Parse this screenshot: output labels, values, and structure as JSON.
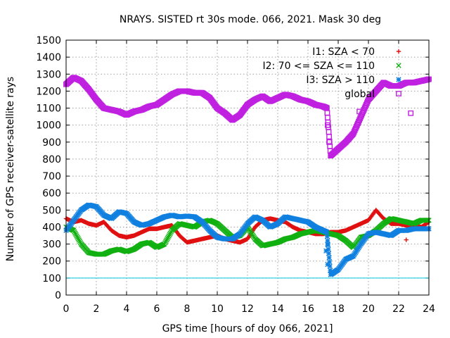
{
  "chart_data": {
    "type": "scatter",
    "title": "NRAYS. SISTED rt 30s mode. 066, 2021. Mask 30 deg",
    "xlabel": "GPS time [hours of doy 066, 2021]",
    "ylabel": "Number of GPS receiver-satellite rays",
    "xlim": [
      0,
      24
    ],
    "ylim": [
      0,
      1500
    ],
    "xticks": [
      "0",
      "2",
      "4",
      "6",
      "8",
      "10",
      "12",
      "14",
      "16",
      "18",
      "20",
      "22",
      "24"
    ],
    "yticks": [
      "0",
      "100",
      "200",
      "300",
      "400",
      "500",
      "600",
      "700",
      "800",
      "900",
      "1000",
      "1100",
      "1200",
      "1300",
      "1400",
      "1500"
    ],
    "grid": true,
    "legend_position": "top-right",
    "reference_line": {
      "y": 100,
      "color": "#00c8e0"
    },
    "series": [
      {
        "name": "I1: SZA < 70",
        "marker": "plus",
        "color": "#e01010",
        "x": [
          0,
          0.5,
          1,
          1.5,
          2,
          2.5,
          3,
          3.5,
          4,
          4.5,
          5,
          5.5,
          6,
          6.5,
          7,
          7.5,
          8,
          8.5,
          9,
          9.5,
          10,
          10.5,
          11,
          11.5,
          12,
          12.5,
          13,
          13.5,
          14,
          14.5,
          15,
          15.5,
          16,
          16.5,
          17,
          17.5,
          18,
          18.5,
          19,
          19.5,
          20,
          20.5,
          21,
          21.5,
          22,
          22.5,
          23,
          23.5,
          24
        ],
        "y": [
          450,
          430,
          440,
          420,
          410,
          430,
          380,
          350,
          340,
          350,
          370,
          390,
          390,
          400,
          410,
          350,
          310,
          320,
          330,
          340,
          350,
          330,
          320,
          310,
          330,
          400,
          440,
          450,
          440,
          430,
          400,
          380,
          370,
          360,
          360,
          370,
          370,
          380,
          400,
          420,
          440,
          500,
          450,
          420,
          420,
          410,
          410,
          400,
          430
        ],
        "outliers": [
          {
            "x": 22.5,
            "y": 325
          }
        ]
      },
      {
        "name": "I2: 70 <= SZA <= 110",
        "marker": "cross",
        "color": "#10b010",
        "x": [
          0,
          0.5,
          1,
          1.5,
          2,
          2.5,
          3,
          3.5,
          4,
          4.5,
          5,
          5.5,
          6,
          6.5,
          7,
          7.5,
          8,
          8.5,
          9,
          9.5,
          10,
          10.5,
          11,
          11.5,
          12,
          12.5,
          13,
          13.5,
          14,
          14.5,
          15,
          15.5,
          16,
          16.5,
          17,
          17.5,
          18,
          18.5,
          19,
          19.5,
          20,
          20.5,
          21,
          21.5,
          22,
          22.5,
          23,
          23.5,
          24
        ],
        "y": [
          400,
          380,
          300,
          250,
          240,
          240,
          260,
          270,
          255,
          270,
          300,
          310,
          280,
          300,
          380,
          420,
          410,
          400,
          430,
          440,
          420,
          380,
          340,
          350,
          400,
          330,
          290,
          300,
          310,
          330,
          340,
          360,
          370,
          380,
          370,
          360,
          350,
          320,
          280,
          340,
          350,
          380,
          420,
          450,
          440,
          430,
          420,
          440,
          440
        ]
      },
      {
        "name": "I3: SZA > 110",
        "marker": "star",
        "color": "#1080e0",
        "x": [
          0,
          0.5,
          1,
          1.5,
          2,
          2.5,
          3,
          3.5,
          4,
          4.5,
          5,
          5.5,
          6,
          6.5,
          7,
          7.5,
          8,
          8.5,
          9,
          9.5,
          10,
          10.5,
          11,
          11.5,
          12,
          12.5,
          13,
          13.5,
          14,
          14.5,
          15,
          15.5,
          16,
          16.5,
          17,
          17.25,
          17.5,
          18,
          18.5,
          19,
          19.5,
          20,
          20.5,
          21,
          21.5,
          22,
          22.5,
          23,
          23.5,
          24
        ],
        "y": [
          380,
          440,
          500,
          530,
          520,
          470,
          450,
          490,
          480,
          430,
          410,
          420,
          440,
          460,
          470,
          460,
          465,
          460,
          430,
          380,
          340,
          330,
          330,
          360,
          420,
          460,
          440,
          400,
          420,
          460,
          450,
          440,
          430,
          400,
          380,
          370,
          120,
          150,
          210,
          230,
          300,
          360,
          370,
          360,
          350,
          380,
          380,
          390,
          390,
          390
        ],
        "outliers": [
          {
            "x": 17.3,
            "y": 180
          },
          {
            "x": 17.2,
            "y": 260
          },
          {
            "x": 17.3,
            "y": 300
          }
        ]
      },
      {
        "name": "global",
        "marker": "square",
        "color": "#c020e0",
        "x": [
          0,
          0.5,
          1,
          1.5,
          2,
          2.5,
          3,
          3.5,
          4,
          4.5,
          5,
          5.5,
          6,
          6.5,
          7,
          7.5,
          8,
          8.5,
          9,
          9.5,
          10,
          10.5,
          11,
          11.5,
          12,
          12.5,
          13,
          13.5,
          14,
          14.5,
          15,
          15.5,
          16,
          16.5,
          17,
          17.25,
          17.5,
          18,
          18.5,
          19,
          19.5,
          20,
          20.5,
          21,
          21.5,
          22,
          22.5,
          23,
          23.5,
          24
        ],
        "y": [
          1240,
          1280,
          1260,
          1210,
          1150,
          1100,
          1090,
          1080,
          1060,
          1080,
          1090,
          1110,
          1120,
          1150,
          1180,
          1200,
          1200,
          1190,
          1190,
          1160,
          1100,
          1070,
          1030,
          1060,
          1120,
          1150,
          1170,
          1140,
          1160,
          1180,
          1170,
          1150,
          1140,
          1120,
          1110,
          1100,
          820,
          860,
          900,
          950,
          1050,
          1150,
          1200,
          1250,
          1230,
          1230,
          1250,
          1250,
          1260,
          1270
        ],
        "outliers": [
          {
            "x": 17.3,
            "y": 1000
          },
          {
            "x": 17.4,
            "y": 900
          },
          {
            "x": 19.4,
            "y": 1080
          },
          {
            "x": 22.8,
            "y": 1070
          }
        ]
      }
    ]
  }
}
